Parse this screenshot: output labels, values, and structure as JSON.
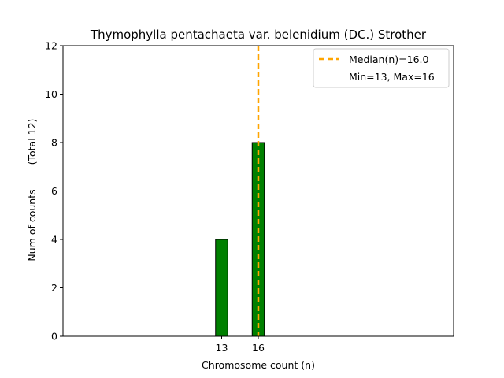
{
  "chart_data": {
    "type": "bar",
    "title": "Thymophylla pentachaeta var. belenidium (DC.) Strother",
    "xlabel": "Chromosome count (n)",
    "ylabel": "Num of counts",
    "ylabel_secondary": "(Total 12)",
    "categories": [
      13,
      16
    ],
    "values": [
      4,
      8
    ],
    "xlim": [
      0,
      32
    ],
    "ylim": [
      0,
      12
    ],
    "yticks": [
      0,
      2,
      4,
      6,
      8,
      10,
      12
    ],
    "xticks": [
      13,
      16
    ],
    "bar_width": 1,
    "baseline_extent": [
      0,
      19.6
    ],
    "bar_color": "#008000",
    "bar_edge_color": "#000000",
    "median": {
      "value": 16,
      "label": "Median(n)=16.0",
      "color": "#FFA500",
      "style": "dashed"
    },
    "range_label": "Min=13, Max=16",
    "legend_position": "top-right",
    "grid": false
  }
}
